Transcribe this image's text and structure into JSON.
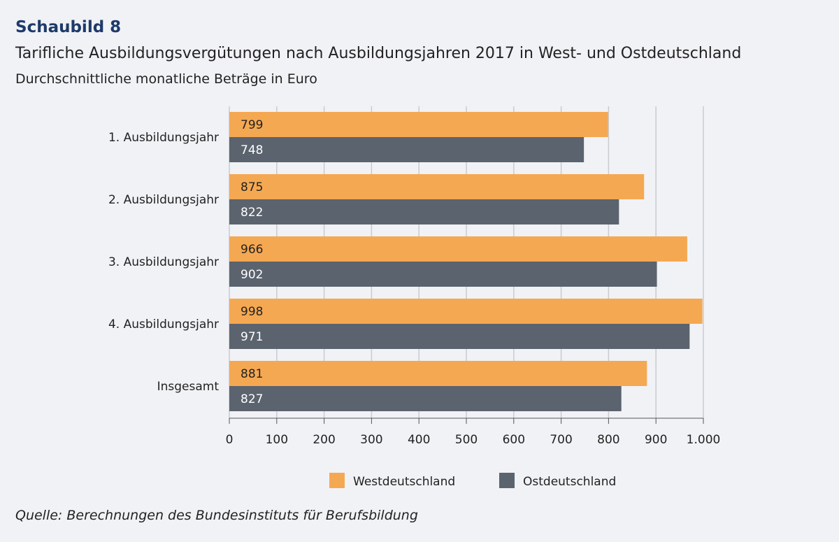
{
  "chart_data": {
    "type": "bar",
    "orientation": "horizontal",
    "label": "Schaubild 8",
    "title": "Tarifliche Ausbildungsvergütungen nach Ausbildungsjahren 2017 in West- und Ostdeutschland",
    "subtitle": "Durchschnittliche monatliche Beträge in Euro",
    "categories": [
      "1. Ausbildungsjahr",
      "2. Ausbildungsjahr",
      "3. Ausbildungsjahr",
      "4. Ausbildungsjahr",
      "Insgesamt"
    ],
    "series": [
      {
        "name": "Westdeutschland",
        "color": "#f5a852",
        "values": [
          799,
          875,
          966,
          998,
          881
        ]
      },
      {
        "name": "Ostdeutschland",
        "color": "#5b636e",
        "values": [
          748,
          822,
          902,
          971,
          827
        ]
      }
    ],
    "xlim": [
      0,
      1000
    ],
    "ticks": [
      0,
      100,
      200,
      300,
      400,
      500,
      600,
      700,
      800,
      900,
      1000
    ],
    "tick_labels": [
      "0",
      "100",
      "200",
      "300",
      "400",
      "500",
      "600",
      "700",
      "800",
      "900",
      "1.000"
    ],
    "grid": true,
    "legend": "bottom-center",
    "source": "Quelle: Berechnungen des Bundesinstituts für Berufsbildung"
  }
}
